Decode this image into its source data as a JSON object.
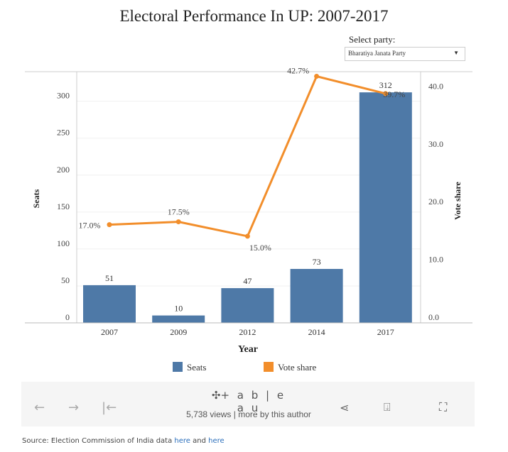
{
  "title": "Electoral Performance In UP: 2007-2017",
  "filter": {
    "label": "Select party:",
    "value": "Bharatiya Janata Party"
  },
  "chart_data": {
    "type": "bar+line",
    "categories": [
      "2007",
      "2009",
      "2012",
      "2014",
      "2017"
    ],
    "series": [
      {
        "name": "Seats",
        "type": "bar",
        "axis": "left",
        "values": [
          51,
          10,
          47,
          73,
          312
        ],
        "labels": [
          "51",
          "10",
          "47",
          "73",
          "312"
        ],
        "color": "#4e79a7"
      },
      {
        "name": "Vote share",
        "type": "line",
        "axis": "right",
        "values": [
          17.0,
          17.5,
          15.0,
          42.7,
          39.7
        ],
        "labels": [
          "17.0%",
          "17.5%",
          "15.0%",
          "42.7%",
          "39.7%"
        ],
        "color": "#f28e2b"
      }
    ],
    "xlabel": "Year",
    "ylabel": "Seats",
    "y2label": "Vote share",
    "ylim": [
      0,
      340
    ],
    "yticks": [
      "0",
      "50",
      "100",
      "150",
      "200",
      "250",
      "300"
    ],
    "y2lim": [
      0,
      43.5
    ],
    "y2ticks": [
      "0.0",
      "10.0",
      "20.0",
      "30.0",
      "40.0"
    ],
    "grid": true,
    "legend_position": "bottom"
  },
  "toolbar": {
    "logo": "+ a b | e a u",
    "views": "5,738 views | more by this author"
  },
  "source": {
    "text": "Source: Election Commission of India data ",
    "link1": "here",
    "and": " and ",
    "link2": "here"
  }
}
